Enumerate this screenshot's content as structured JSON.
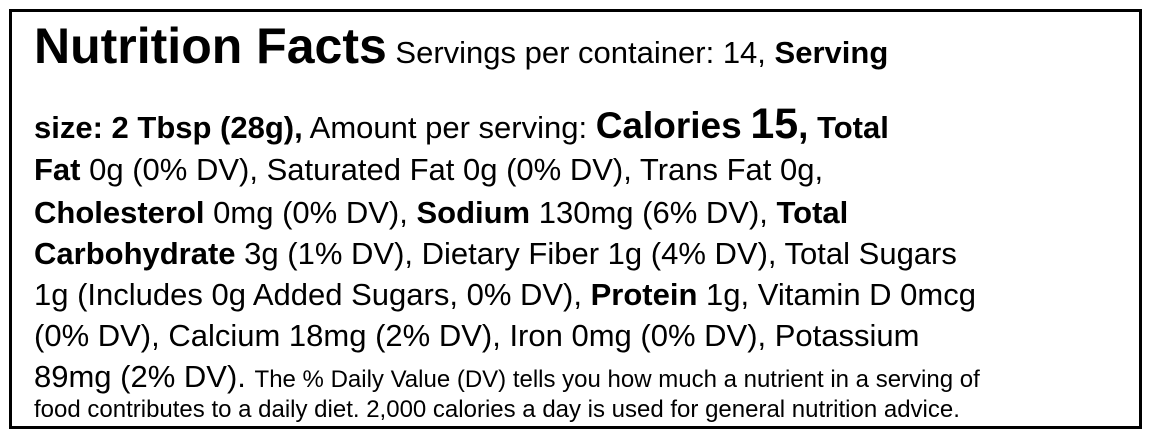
{
  "label": {
    "title": "Nutrition Facts",
    "servings_text": "Servings per container: 14,",
    "serving_size_bold_1": "Serving",
    "serving_size_bold_2": "size: 2 Tbsp (28g),",
    "amount_per_serving": "Amount per serving:",
    "calories_label": "Calories",
    "calories_value": "15",
    "comma": ",",
    "total_fat_1": "Total",
    "total_fat_2": "Fat",
    "total_fat_value": "0g (0% DV), Saturated Fat 0g (0% DV), Trans Fat 0g,",
    "cholesterol_label": "Cholesterol",
    "cholesterol_value": "0mg (0% DV),",
    "sodium_label": "Sodium",
    "sodium_value": "130mg (6% DV),",
    "total_carb_1": "Total",
    "total_carb_2": "Carbohydrate",
    "carb_value": "3g (1% DV), Dietary Fiber 1g (4% DV), Total Sugars",
    "sugars_line": "1g (Includes 0g Added Sugars, 0% DV),",
    "protein_label": "Protein",
    "protein_value": "1g, Vitamin D 0mcg",
    "line7": "(0% DV), Calcium 18mg (2% DV), Iron 0mg (0% DV), Potassium",
    "line8_main": "89mg (2% DV).",
    "footnote_1": "The % Daily Value (DV) tells you how much a nutrient in a serving of",
    "footnote_2": "food contributes to a daily diet. 2,000 calories a day is used for general nutrition advice."
  }
}
